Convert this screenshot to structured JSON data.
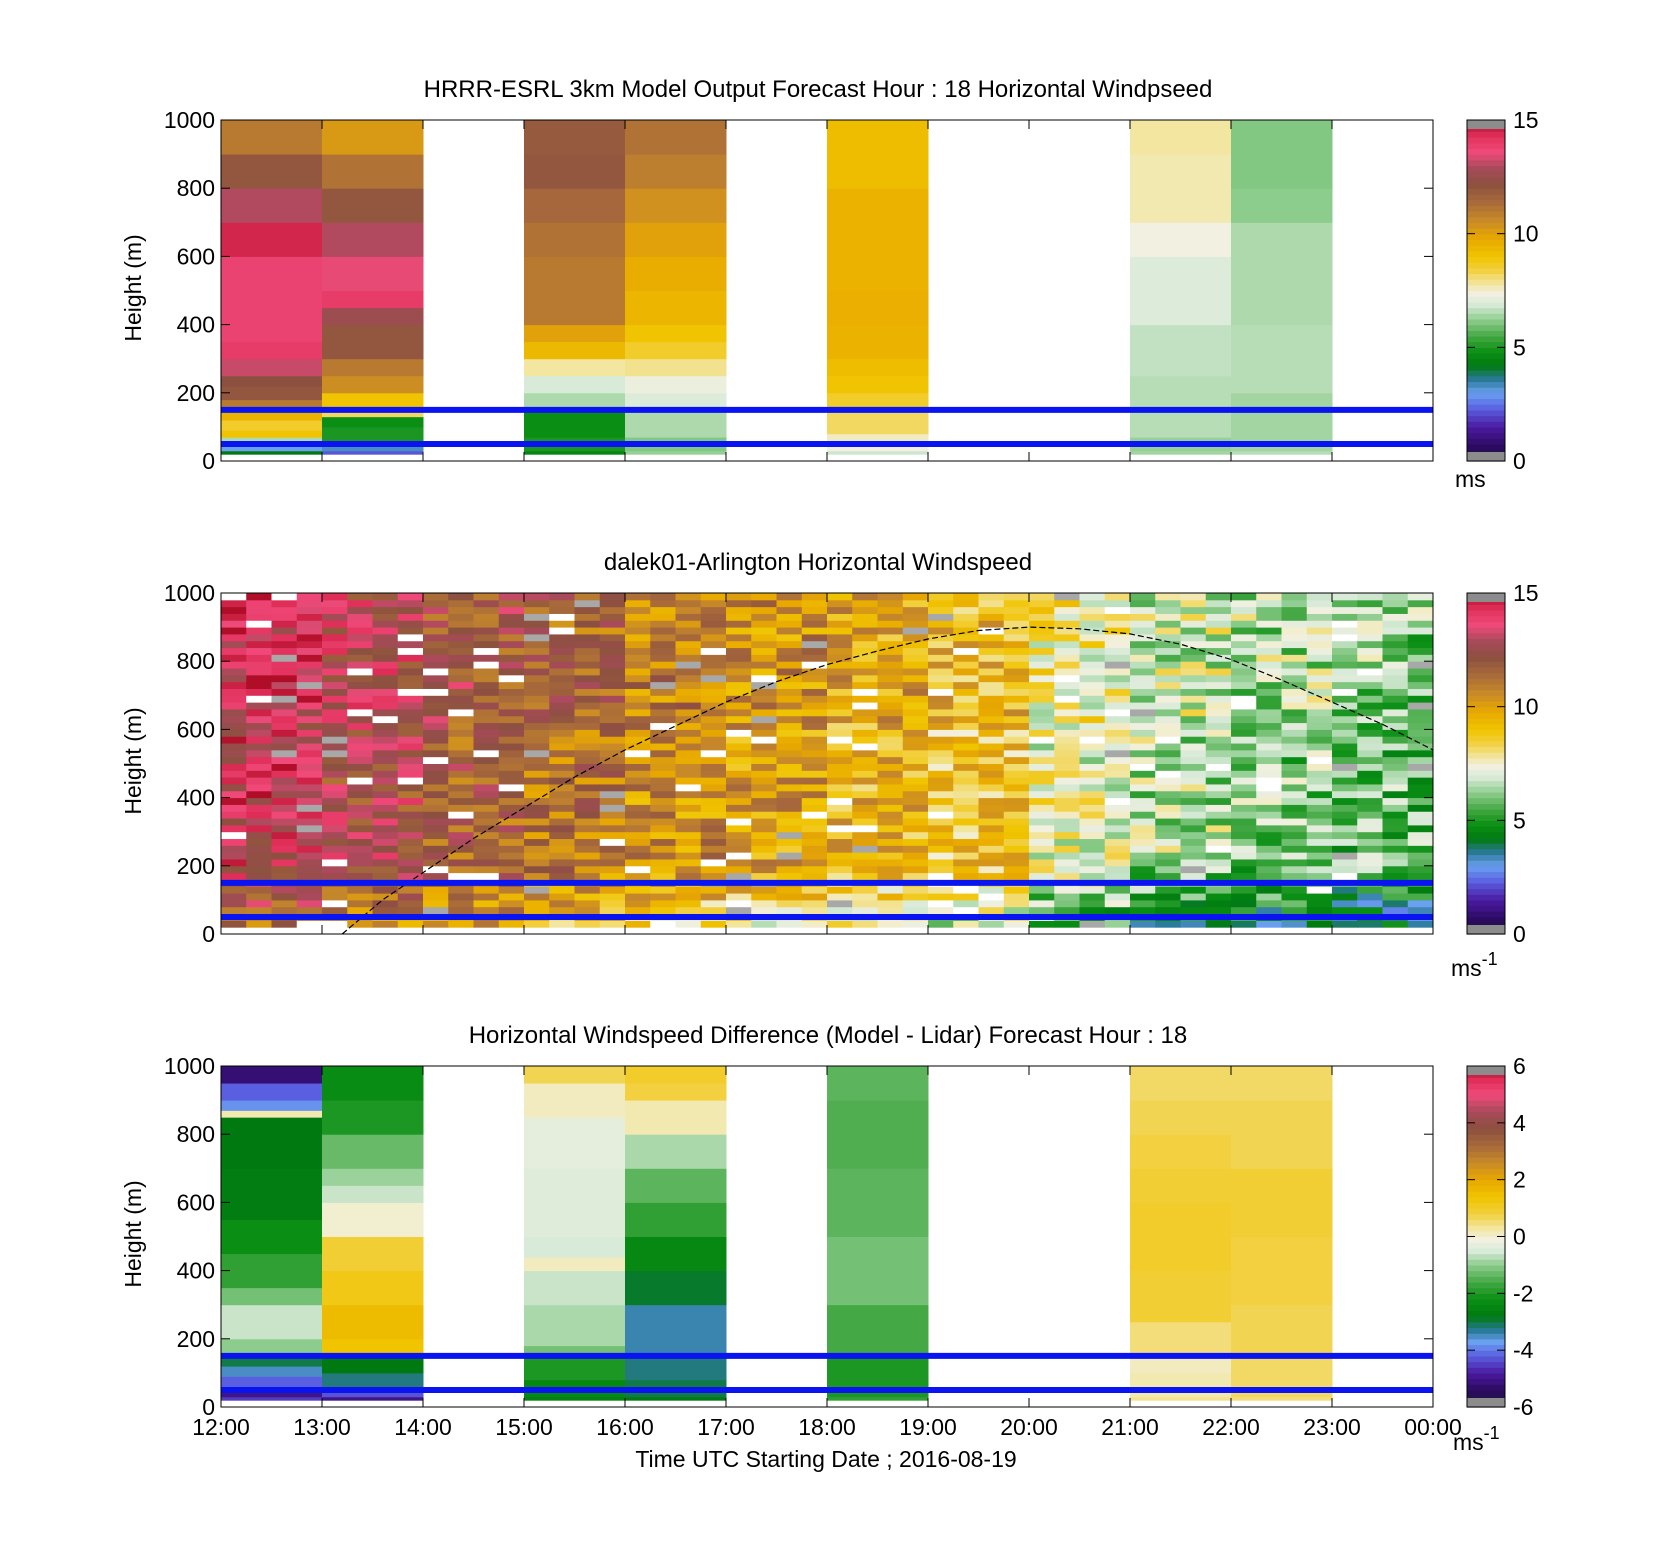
{
  "figure": {
    "xlabel": "Time UTC  Starting Date ; 2016-08-19",
    "xticks": [
      "12:00",
      "13:00",
      "14:00",
      "15:00",
      "16:00",
      "17:00",
      "18:00",
      "19:00",
      "20:00",
      "21:00",
      "22:00",
      "23:00",
      "00:00"
    ]
  },
  "chart_data": [
    {
      "type": "heatmap",
      "title": "HRRR-ESRL 3km Model Output   Forecast Hour : 18 Horizontal Windpseed",
      "ylabel": "Height (m)",
      "ylim": [
        0,
        1000
      ],
      "yticks": [
        0,
        200,
        400,
        600,
        800,
        1000
      ],
      "xlim_hours": [
        12,
        24
      ],
      "colorbar": {
        "range": [
          0,
          15
        ],
        "ticks": [
          0,
          5,
          10,
          15
        ],
        "unit": "ms",
        "unit_sup": ""
      },
      "hlines_m": [
        150,
        50
      ],
      "columns": [
        {
          "start_h": 12,
          "bins": [
            [
              30,
              4.2
            ],
            [
              50,
              3.0
            ],
            [
              70,
              6.5
            ],
            [
              90,
              9.0
            ],
            [
              120,
              8.6
            ],
            [
              150,
              9.5
            ],
            [
              180,
              11.0
            ],
            [
              220,
              12.0
            ],
            [
              250,
              12.2
            ],
            [
              300,
              13.2
            ],
            [
              350,
              14.0
            ],
            [
              600,
              13.8
            ],
            [
              700,
              14.5
            ],
            [
              800,
              13.0
            ],
            [
              900,
              12.0
            ],
            [
              1000,
              11.0
            ]
          ]
        },
        {
          "start_h": 13,
          "bins": [
            [
              30,
              2.2
            ],
            [
              50,
              3.3
            ],
            [
              100,
              5.0
            ],
            [
              130,
              4.8
            ],
            [
              150,
              8.2
            ],
            [
              200,
              9.0
            ],
            [
              250,
              10.5
            ],
            [
              300,
              11.0
            ],
            [
              400,
              12.0
            ],
            [
              450,
              12.6
            ],
            [
              500,
              14.0
            ],
            [
              600,
              13.5
            ],
            [
              700,
              13.0
            ],
            [
              800,
              12.0
            ],
            [
              900,
              11.2
            ],
            [
              1000,
              10.2
            ]
          ]
        },
        {
          "start_h": 15,
          "bins": [
            [
              30,
              4.5
            ],
            [
              70,
              5.0
            ],
            [
              150,
              4.8
            ],
            [
              200,
              6.5
            ],
            [
              250,
              6.9
            ],
            [
              300,
              7.8
            ],
            [
              350,
              9.3
            ],
            [
              400,
              10.0
            ],
            [
              600,
              11.0
            ],
            [
              700,
              11.2
            ],
            [
              800,
              11.5
            ],
            [
              900,
              12.0
            ],
            [
              1000,
              11.9
            ]
          ]
        },
        {
          "start_h": 16,
          "bins": [
            [
              30,
              6.3
            ],
            [
              70,
              6.1
            ],
            [
              150,
              6.5
            ],
            [
              200,
              7.0
            ],
            [
              250,
              7.3
            ],
            [
              300,
              7.9
            ],
            [
              350,
              8.6
            ],
            [
              400,
              9.0
            ],
            [
              500,
              9.4
            ],
            [
              600,
              9.7
            ],
            [
              700,
              10.0
            ],
            [
              800,
              10.4
            ],
            [
              900,
              10.9
            ],
            [
              1000,
              11.2
            ]
          ]
        },
        {
          "start_h": 18,
          "bins": [
            [
              30,
              6.8
            ],
            [
              60,
              7.4
            ],
            [
              80,
              7.6
            ],
            [
              150,
              8.2
            ],
            [
              200,
              8.6
            ],
            [
              250,
              9.0
            ],
            [
              300,
              9.2
            ],
            [
              400,
              9.5
            ],
            [
              500,
              9.6
            ],
            [
              800,
              9.5
            ],
            [
              1000,
              9.2
            ]
          ]
        },
        {
          "start_h": 21,
          "bins": [
            [
              30,
              6.4
            ],
            [
              70,
              6.3
            ],
            [
              150,
              6.6
            ],
            [
              250,
              6.6
            ],
            [
              400,
              6.7
            ],
            [
              600,
              7.0
            ],
            [
              700,
              7.4
            ],
            [
              900,
              7.7
            ],
            [
              1000,
              7.8
            ]
          ]
        },
        {
          "start_h": 22,
          "bins": [
            [
              30,
              6.6
            ],
            [
              200,
              6.4
            ],
            [
              400,
              6.6
            ],
            [
              700,
              6.5
            ],
            [
              800,
              6.2
            ],
            [
              1000,
              6.1
            ]
          ]
        }
      ]
    },
    {
      "type": "heatmap",
      "title": "dalek01-Arlington  Horizontal Windspeed",
      "ylabel": "Height (m)",
      "ylim": [
        0,
        1000
      ],
      "yticks": [
        0,
        200,
        400,
        600,
        800,
        1000
      ],
      "xlim_hours": [
        12,
        24
      ],
      "colorbar": {
        "range": [
          0,
          15
        ],
        "ticks": [
          0,
          5,
          10,
          15
        ],
        "unit": "ms",
        "unit_sup": "-1"
      },
      "hlines_m": [
        150,
        50
      ],
      "curve": {
        "label": "",
        "peak_hour": 20.1,
        "peak_m": 900,
        "x_hours": [
          13.2,
          13.6,
          14.0,
          14.5,
          15.0,
          15.5,
          16.0,
          16.5,
          17.0,
          17.5,
          18.0,
          18.5,
          19.0,
          19.5,
          20.0,
          20.5,
          21.0,
          21.5,
          22.0,
          22.5,
          23.0,
          23.5,
          24.0
        ],
        "y_m": [
          0,
          100,
          180,
          280,
          370,
          460,
          540,
          610,
          680,
          740,
          790,
          830,
          865,
          890,
          900,
          895,
          880,
          850,
          805,
          745,
          680,
          615,
          540
        ]
      },
      "columns_hourly_mean": [
        13.5,
        12.6,
        11.8,
        11.2,
        10.4,
        10.0,
        9.4,
        8.9,
        7.4,
        6.6,
        6.2,
        5.8
      ],
      "column_width_min": 15
    },
    {
      "type": "heatmap",
      "title": "Horizontal Windspeed Difference (Model - Lidar) Forecast Hour : 18",
      "ylabel": "Height (m)",
      "ylim": [
        0,
        1000
      ],
      "yticks": [
        0,
        200,
        400,
        600,
        800,
        1000
      ],
      "xlim_hours": [
        12,
        24
      ],
      "colorbar": {
        "range": [
          -6,
          6
        ],
        "ticks": [
          -6,
          -4,
          -2,
          0,
          2,
          4,
          6
        ],
        "unit": "ms",
        "unit_sup": "-1"
      },
      "hlines_m": [
        150,
        50
      ],
      "columns": [
        {
          "start_h": 12,
          "bins": [
            [
              30,
              -4.5
            ],
            [
              60,
              -5.0
            ],
            [
              90,
              -4.2
            ],
            [
              120,
              -3.5
            ],
            [
              150,
              -3.0
            ],
            [
              200,
              -1.0
            ],
            [
              300,
              -0.6
            ],
            [
              350,
              -1.2
            ],
            [
              450,
              -1.8
            ],
            [
              550,
              -2.2
            ],
            [
              700,
              -2.7
            ],
            [
              850,
              -2.8
            ],
            [
              870,
              0.2
            ],
            [
              900,
              -3.8
            ],
            [
              950,
              -4.2
            ],
            [
              1000,
              -5.2
            ]
          ]
        },
        {
          "start_h": 13,
          "bins": [
            [
              30,
              -5.0
            ],
            [
              60,
              -4.3
            ],
            [
              100,
              -3.2
            ],
            [
              150,
              -2.8
            ],
            [
              200,
              1.4
            ],
            [
              300,
              1.6
            ],
            [
              400,
              1.2
            ],
            [
              500,
              0.9
            ],
            [
              600,
              0.0
            ],
            [
              650,
              -0.6
            ],
            [
              700,
              -0.9
            ],
            [
              800,
              -1.3
            ],
            [
              900,
              -2.0
            ],
            [
              1000,
              -2.3
            ]
          ]
        },
        {
          "start_h": 15,
          "bins": [
            [
              30,
              -2.6
            ],
            [
              80,
              -2.4
            ],
            [
              150,
              -2.0
            ],
            [
              180,
              -1.2
            ],
            [
              300,
              -0.8
            ],
            [
              400,
              -0.6
            ],
            [
              440,
              0.1
            ],
            [
              500,
              -0.5
            ],
            [
              700,
              -0.4
            ],
            [
              850,
              -0.3
            ],
            [
              950,
              0.1
            ],
            [
              1000,
              0.7
            ]
          ]
        },
        {
          "start_h": 16,
          "bins": [
            [
              30,
              -2.8
            ],
            [
              80,
              -3.0
            ],
            [
              150,
              -3.2
            ],
            [
              300,
              -3.4
            ],
            [
              400,
              -2.9
            ],
            [
              500,
              -2.4
            ],
            [
              600,
              -1.8
            ],
            [
              700,
              -1.4
            ],
            [
              800,
              -0.8
            ],
            [
              900,
              0.2
            ],
            [
              950,
              0.8
            ],
            [
              1000,
              1.0
            ]
          ]
        },
        {
          "start_h": 18,
          "bins": [
            [
              30,
              -1.8
            ],
            [
              150,
              -2.0
            ],
            [
              300,
              -1.6
            ],
            [
              500,
              -1.2
            ],
            [
              700,
              -1.4
            ],
            [
              900,
              -1.5
            ],
            [
              1000,
              -1.4
            ]
          ]
        },
        {
          "start_h": 21,
          "bins": [
            [
              30,
              0.4
            ],
            [
              100,
              0.2
            ],
            [
              150,
              0.1
            ],
            [
              250,
              0.5
            ],
            [
              400,
              0.9
            ],
            [
              600,
              1.0
            ],
            [
              700,
              0.9
            ],
            [
              800,
              0.8
            ],
            [
              900,
              0.7
            ],
            [
              1000,
              0.6
            ]
          ]
        },
        {
          "start_h": 22,
          "bins": [
            [
              30,
              0.5
            ],
            [
              150,
              0.6
            ],
            [
              300,
              0.7
            ],
            [
              500,
              0.8
            ],
            [
              700,
              0.9
            ],
            [
              900,
              0.7
            ],
            [
              1000,
              0.6
            ]
          ]
        }
      ]
    }
  ]
}
